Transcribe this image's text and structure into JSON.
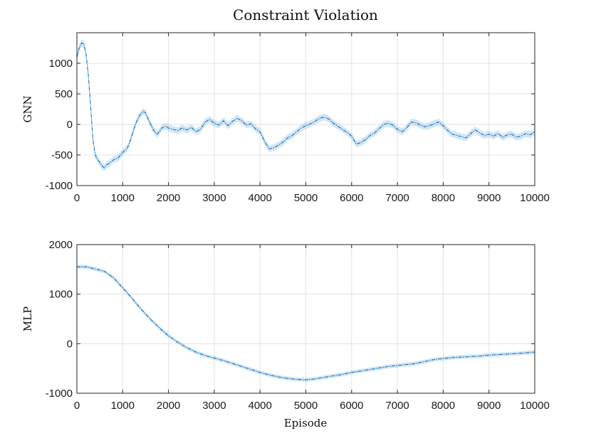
{
  "chart_data": {
    "type": "line",
    "title": "Constraint Violation",
    "xlabel": "Episode",
    "subplots": [
      {
        "id": "gnn",
        "ylabel": "GNN",
        "xlim": [
          0,
          10000
        ],
        "ylim": [
          -1000,
          1500
        ],
        "xticks": [
          "0",
          "1000",
          "2000",
          "3000",
          "4000",
          "5000",
          "6000",
          "7000",
          "8000",
          "9000",
          "10000"
        ],
        "yticks": [
          "-1000",
          "-500",
          "0",
          "500",
          "1000"
        ],
        "grid": true,
        "band_halfwidth": 55,
        "series": [
          {
            "name": "GNN",
            "x": [
              0,
              50,
              100,
              150,
              200,
              250,
              300,
              350,
              400,
              450,
              500,
              550,
              600,
              650,
              700,
              750,
              800,
              850,
              900,
              950,
              1000,
              1050,
              1100,
              1150,
              1200,
              1250,
              1300,
              1350,
              1400,
              1450,
              1500,
              1550,
              1600,
              1650,
              1700,
              1750,
              1800,
              1850,
              1900,
              1950,
              2000,
              2100,
              2200,
              2300,
              2400,
              2500,
              2600,
              2700,
              2800,
              2900,
              3000,
              3100,
              3200,
              3300,
              3400,
              3500,
              3600,
              3700,
              3800,
              3900,
              4000,
              4100,
              4200,
              4300,
              4400,
              4500,
              4600,
              4700,
              4800,
              4900,
              5000,
              5100,
              5200,
              5300,
              5400,
              5500,
              5600,
              5700,
              5800,
              5900,
              6000,
              6100,
              6200,
              6300,
              6400,
              6500,
              6600,
              6700,
              6800,
              6900,
              7000,
              7100,
              7200,
              7300,
              7400,
              7500,
              7600,
              7700,
              7800,
              7900,
              8000,
              8100,
              8200,
              8300,
              8400,
              8500,
              8600,
              8700,
              8800,
              8900,
              9000,
              9100,
              9200,
              9300,
              9400,
              9500,
              9600,
              9700,
              9800,
              9900,
              10000
            ],
            "y": [
              1100,
              1250,
              1330,
              1320,
              1150,
              800,
              300,
              -250,
              -500,
              -570,
              -620,
              -680,
              -710,
              -660,
              -640,
              -610,
              -580,
              -560,
              -550,
              -500,
              -460,
              -420,
              -390,
              -300,
              -180,
              -60,
              40,
              120,
              180,
              210,
              190,
              100,
              20,
              -60,
              -120,
              -160,
              -120,
              -60,
              -40,
              -30,
              -60,
              -80,
              -100,
              -60,
              -90,
              -50,
              -120,
              -80,
              40,
              80,
              20,
              -10,
              60,
              -20,
              50,
              100,
              60,
              -10,
              10,
              -70,
              -120,
              -280,
              -400,
              -380,
              -340,
              -290,
              -220,
              -180,
              -120,
              -60,
              -20,
              10,
              50,
              100,
              120,
              90,
              20,
              -30,
              -80,
              -130,
              -190,
              -320,
              -300,
              -250,
              -180,
              -140,
              -70,
              0,
              20,
              -10,
              -80,
              -120,
              -60,
              40,
              30,
              -10,
              -40,
              -20,
              10,
              40,
              -20,
              -100,
              -160,
              -180,
              -200,
              -220,
              -150,
              -90,
              -140,
              -180,
              -160,
              -190,
              -150,
              -210,
              -170,
              -160,
              -210,
              -190,
              -150,
              -170,
              -120
            ]
          }
        ]
      },
      {
        "id": "mlp",
        "ylabel": "MLP",
        "xlim": [
          0,
          10000
        ],
        "ylim": [
          -1000,
          2000
        ],
        "xticks": [
          "0",
          "1000",
          "2000",
          "3000",
          "4000",
          "5000",
          "6000",
          "7000",
          "8000",
          "9000",
          "10000"
        ],
        "yticks": [
          "-1000",
          "0",
          "1000",
          "2000"
        ],
        "grid": true,
        "band_halfwidth": 40,
        "series": [
          {
            "name": "MLP",
            "x": [
              0,
              200,
              400,
              600,
              800,
              1000,
              1200,
              1400,
              1600,
              1800,
              2000,
              2200,
              2400,
              2600,
              2800,
              3000,
              3200,
              3400,
              3600,
              3800,
              4000,
              4200,
              4400,
              4600,
              4800,
              5000,
              5200,
              5400,
              5600,
              5800,
              6000,
              6200,
              6400,
              6600,
              6800,
              7000,
              7200,
              7400,
              7600,
              7800,
              8000,
              8200,
              8400,
              8600,
              8800,
              9000,
              9200,
              9400,
              9600,
              9800,
              10000
            ],
            "y": [
              1550,
              1550,
              1510,
              1460,
              1330,
              1130,
              920,
              700,
              500,
              320,
              160,
              30,
              -80,
              -170,
              -240,
              -290,
              -340,
              -400,
              -460,
              -520,
              -580,
              -630,
              -670,
              -700,
              -720,
              -730,
              -710,
              -680,
              -650,
              -620,
              -580,
              -550,
              -520,
              -490,
              -460,
              -440,
              -420,
              -400,
              -360,
              -320,
              -300,
              -280,
              -270,
              -260,
              -250,
              -230,
              -220,
              -210,
              -200,
              -185,
              -170
            ]
          }
        ]
      }
    ]
  }
}
